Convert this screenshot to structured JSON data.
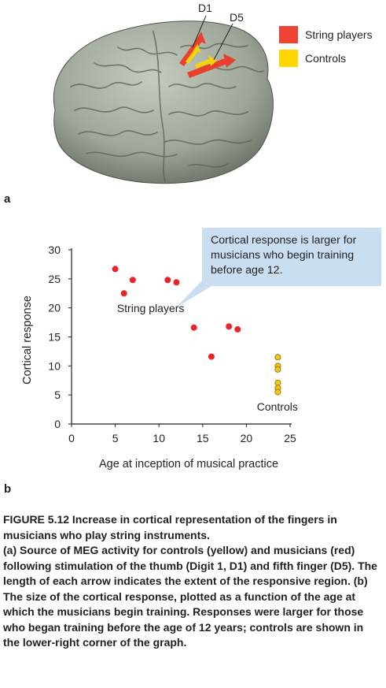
{
  "panel_a": {
    "letter": "a",
    "legend": [
      {
        "label": "String players",
        "color": "#ee4433"
      },
      {
        "label": "Controls",
        "color": "#ffd700"
      }
    ],
    "digit_labels": {
      "d1": "D1",
      "d5": "D5"
    },
    "brain_color": "#9ea79a",
    "arrow_string_color": "#e8402d",
    "arrow_control_color": "#f4d40a"
  },
  "panel_b": {
    "letter": "b",
    "callout": "Cortical response is larger for musicians who begin training before age 12.",
    "callout_color": "#c9dff1"
  },
  "chart_data": {
    "type": "scatter",
    "xlabel": "Age at inception of musical practice",
    "ylabel": "Cortical response",
    "xlim": [
      0,
      25
    ],
    "ylim": [
      0,
      30
    ],
    "xticks": [
      0,
      5,
      10,
      15,
      20,
      25
    ],
    "yticks": [
      0,
      5,
      10,
      15,
      20,
      25,
      30
    ],
    "series": [
      {
        "name": "String players",
        "color": "#e8252a",
        "points": [
          {
            "x": 5,
            "y": 26.7
          },
          {
            "x": 6,
            "y": 22.5
          },
          {
            "x": 7,
            "y": 24.8
          },
          {
            "x": 11,
            "y": 24.8
          },
          {
            "x": 12,
            "y": 24.4
          },
          {
            "x": 14,
            "y": 16.6
          },
          {
            "x": 16,
            "y": 11.6
          },
          {
            "x": 18,
            "y": 16.8
          },
          {
            "x": 19,
            "y": 16.3
          }
        ]
      },
      {
        "name": "Controls",
        "color": "#f5c518",
        "points": [
          {
            "x": 23.6,
            "y": 11.5
          },
          {
            "x": 23.6,
            "y": 10.0
          },
          {
            "x": 23.6,
            "y": 9.4
          },
          {
            "x": 23.6,
            "y": 7.1
          },
          {
            "x": 23.6,
            "y": 6.2
          },
          {
            "x": 23.6,
            "y": 5.5
          }
        ]
      }
    ],
    "annotations": [
      {
        "text": "String players",
        "x": 5.2,
        "y": 19.3
      },
      {
        "text": "Controls",
        "x": 21.2,
        "y": 2.3
      }
    ]
  },
  "caption": {
    "title": "FIGURE 5.12  Increase in cortical representation of the fingers in musicians who play string instruments.",
    "body": "(a) Source of MEG activity for controls (yellow) and musicians (red) following stimulation of the thumb (Digit 1, D1) and fifth finger (D5). The length of each arrow indicates the extent of the responsive region. (b) The size of the cortical response, plotted as a function of the age at which the musicians begin training. Responses were larger for those who began training before the age of 12 years; controls are shown in the lower-right corner of the graph."
  }
}
